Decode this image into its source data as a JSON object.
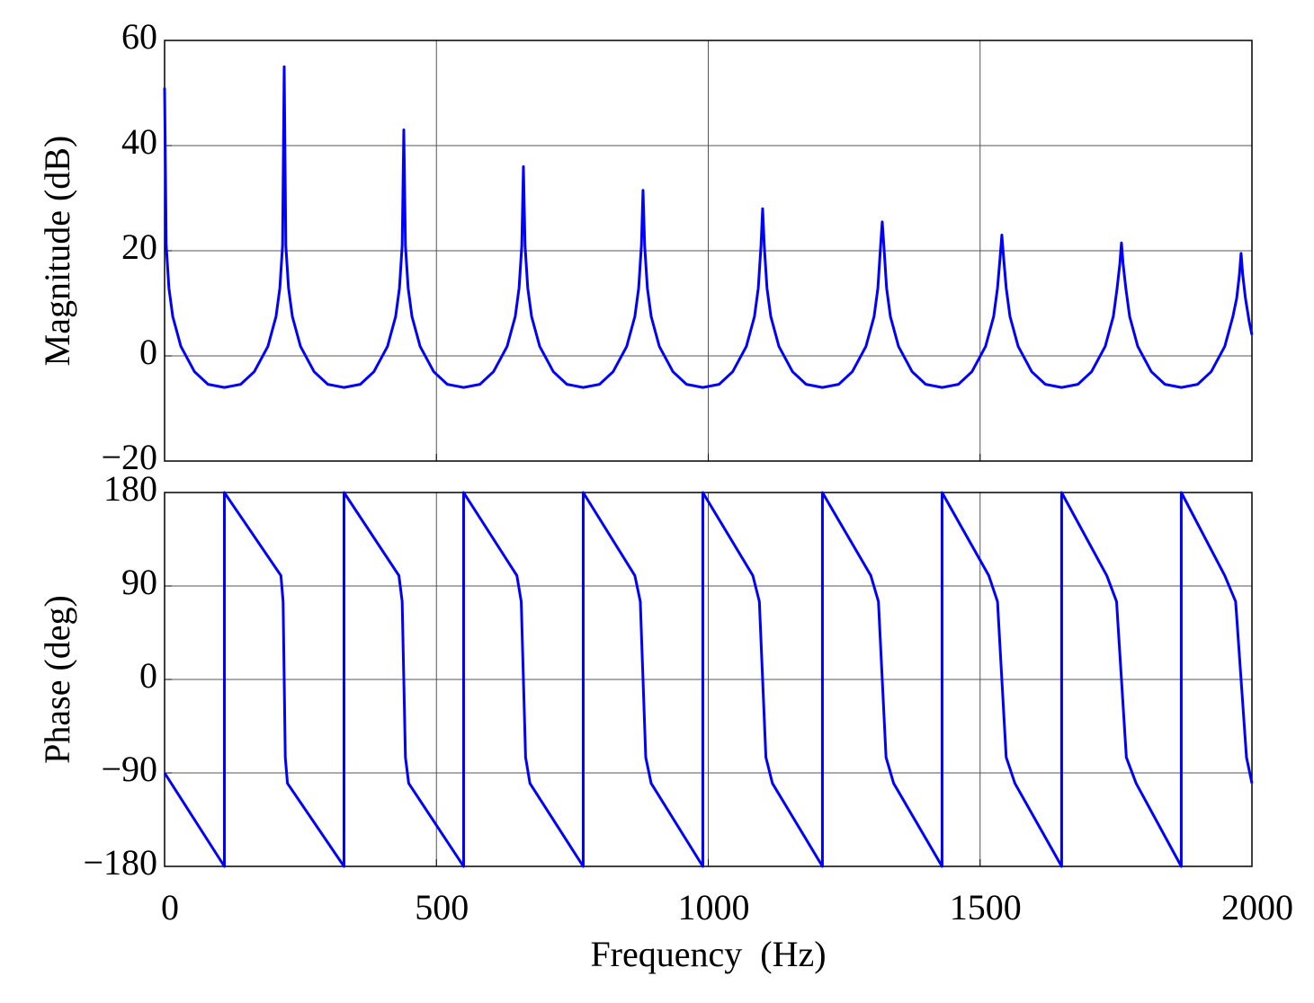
{
  "chart_data": [
    {
      "type": "line",
      "ylabel": "Magnitude (dB)",
      "color": "#0000ff",
      "grid": true,
      "xlim": [
        0,
        2000
      ],
      "xticks": [
        0,
        500,
        1000,
        1500,
        2000
      ],
      "ylim": [
        -20,
        60
      ],
      "yticks": [
        {
          "value": -20,
          "label": "−20"
        },
        0,
        20,
        40,
        60
      ],
      "x": [
        0,
        3,
        8,
        15,
        30,
        55,
        80,
        110,
        140,
        165,
        190,
        205,
        212,
        217,
        220,
        223,
        228,
        235,
        250,
        275,
        300,
        330,
        360,
        385,
        410,
        425,
        432,
        437,
        440,
        443,
        448,
        455,
        470,
        495,
        520,
        550,
        580,
        605,
        630,
        645,
        652,
        657,
        660,
        663,
        668,
        675,
        690,
        715,
        740,
        770,
        800,
        825,
        850,
        865,
        872,
        877,
        880,
        883,
        888,
        895,
        910,
        935,
        960,
        990,
        1020,
        1045,
        1070,
        1085,
        1092,
        1097,
        1100,
        1103,
        1108,
        1115,
        1130,
        1155,
        1180,
        1210,
        1240,
        1265,
        1290,
        1305,
        1312,
        1317,
        1320,
        1323,
        1328,
        1335,
        1350,
        1375,
        1400,
        1430,
        1460,
        1485,
        1510,
        1525,
        1532,
        1537,
        1540,
        1543,
        1548,
        1555,
        1570,
        1595,
        1620,
        1650,
        1680,
        1705,
        1730,
        1745,
        1752,
        1757,
        1760,
        1763,
        1768,
        1775,
        1790,
        1815,
        1840,
        1870,
        1900,
        1925,
        1950,
        1965,
        1972,
        1977,
        1980,
        1983,
        1988,
        1995,
        2000
      ],
      "values": [
        51,
        21,
        12.9,
        7.5,
        1.8,
        -3,
        -5.4,
        -6,
        -5.4,
        -3,
        1.8,
        7.5,
        12.9,
        21,
        55,
        21,
        12.9,
        7.5,
        1.8,
        -3,
        -5.4,
        -6,
        -5.4,
        -3,
        1.8,
        7.5,
        12.9,
        21,
        43,
        21,
        12.9,
        7.5,
        1.8,
        -3,
        -5.4,
        -6,
        -5.4,
        -3,
        1.8,
        7.5,
        12.9,
        21,
        36,
        21,
        12.9,
        7.5,
        1.8,
        -3,
        -5.4,
        -6,
        -5.4,
        -3,
        1.8,
        7.5,
        12.9,
        21,
        31.5,
        21,
        12.9,
        7.5,
        1.8,
        -3,
        -5.4,
        -6,
        -5.4,
        -3,
        1.8,
        7.5,
        12.9,
        21,
        28,
        21,
        12.9,
        7.5,
        1.8,
        -3,
        -5.4,
        -6,
        -5.4,
        -3,
        1.8,
        7.5,
        12.9,
        21,
        25.5,
        21,
        12.9,
        7.5,
        1.8,
        -3,
        -5.4,
        -6,
        -5.4,
        -3,
        1.8,
        7.5,
        12.9,
        19,
        23,
        19,
        12.9,
        7.5,
        1.8,
        -3,
        -5.4,
        -6,
        -5.4,
        -3,
        1.8,
        7.5,
        12.9,
        17.5,
        21.5,
        17.5,
        12.9,
        7.5,
        1.8,
        -3,
        -5.4,
        -6,
        -5.4,
        -3,
        1.8,
        7.5,
        11,
        15.5,
        19.5,
        15.5,
        11,
        6.5,
        4
      ]
    },
    {
      "type": "line",
      "ylabel": "Phase (deg)",
      "xlabel": "Frequency  (Hz)",
      "color": "#0000ff",
      "grid": true,
      "xlim": [
        0,
        2000
      ],
      "xticks": [
        0,
        500,
        1000,
        1500,
        2000
      ],
      "ylim": [
        -180,
        180
      ],
      "yticks": [
        {
          "value": -180,
          "label": "−180"
        },
        {
          "value": -90,
          "label": "−90"
        },
        0,
        90,
        180
      ],
      "x": [
        0,
        110,
        110,
        214,
        218,
        220,
        222,
        226,
        330,
        330,
        431,
        437,
        440,
        443,
        449,
        550,
        550,
        648,
        656,
        660,
        664,
        672,
        770,
        770,
        865,
        875,
        880,
        885,
        895,
        990,
        990,
        1082,
        1094,
        1100,
        1106,
        1118,
        1210,
        1210,
        1299,
        1313,
        1320,
        1327,
        1341,
        1430,
        1430,
        1516,
        1532,
        1540,
        1548,
        1564,
        1650,
        1650,
        1733,
        1751,
        1760,
        1769,
        1787,
        1870,
        1870,
        1950,
        1970,
        1980,
        1990,
        2000
      ],
      "values": [
        -90,
        -180,
        180,
        100,
        75,
        0,
        -75,
        -100,
        -180,
        180,
        100,
        75,
        0,
        -75,
        -100,
        -180,
        180,
        100,
        75,
        0,
        -75,
        -100,
        -180,
        180,
        100,
        75,
        0,
        -75,
        -100,
        -180,
        180,
        100,
        75,
        0,
        -75,
        -100,
        -180,
        180,
        100,
        75,
        0,
        -75,
        -100,
        -180,
        180,
        100,
        75,
        0,
        -75,
        -100,
        -180,
        180,
        100,
        75,
        0,
        -75,
        -100,
        -180,
        180,
        100,
        75,
        0,
        -75,
        -100
      ]
    }
  ]
}
